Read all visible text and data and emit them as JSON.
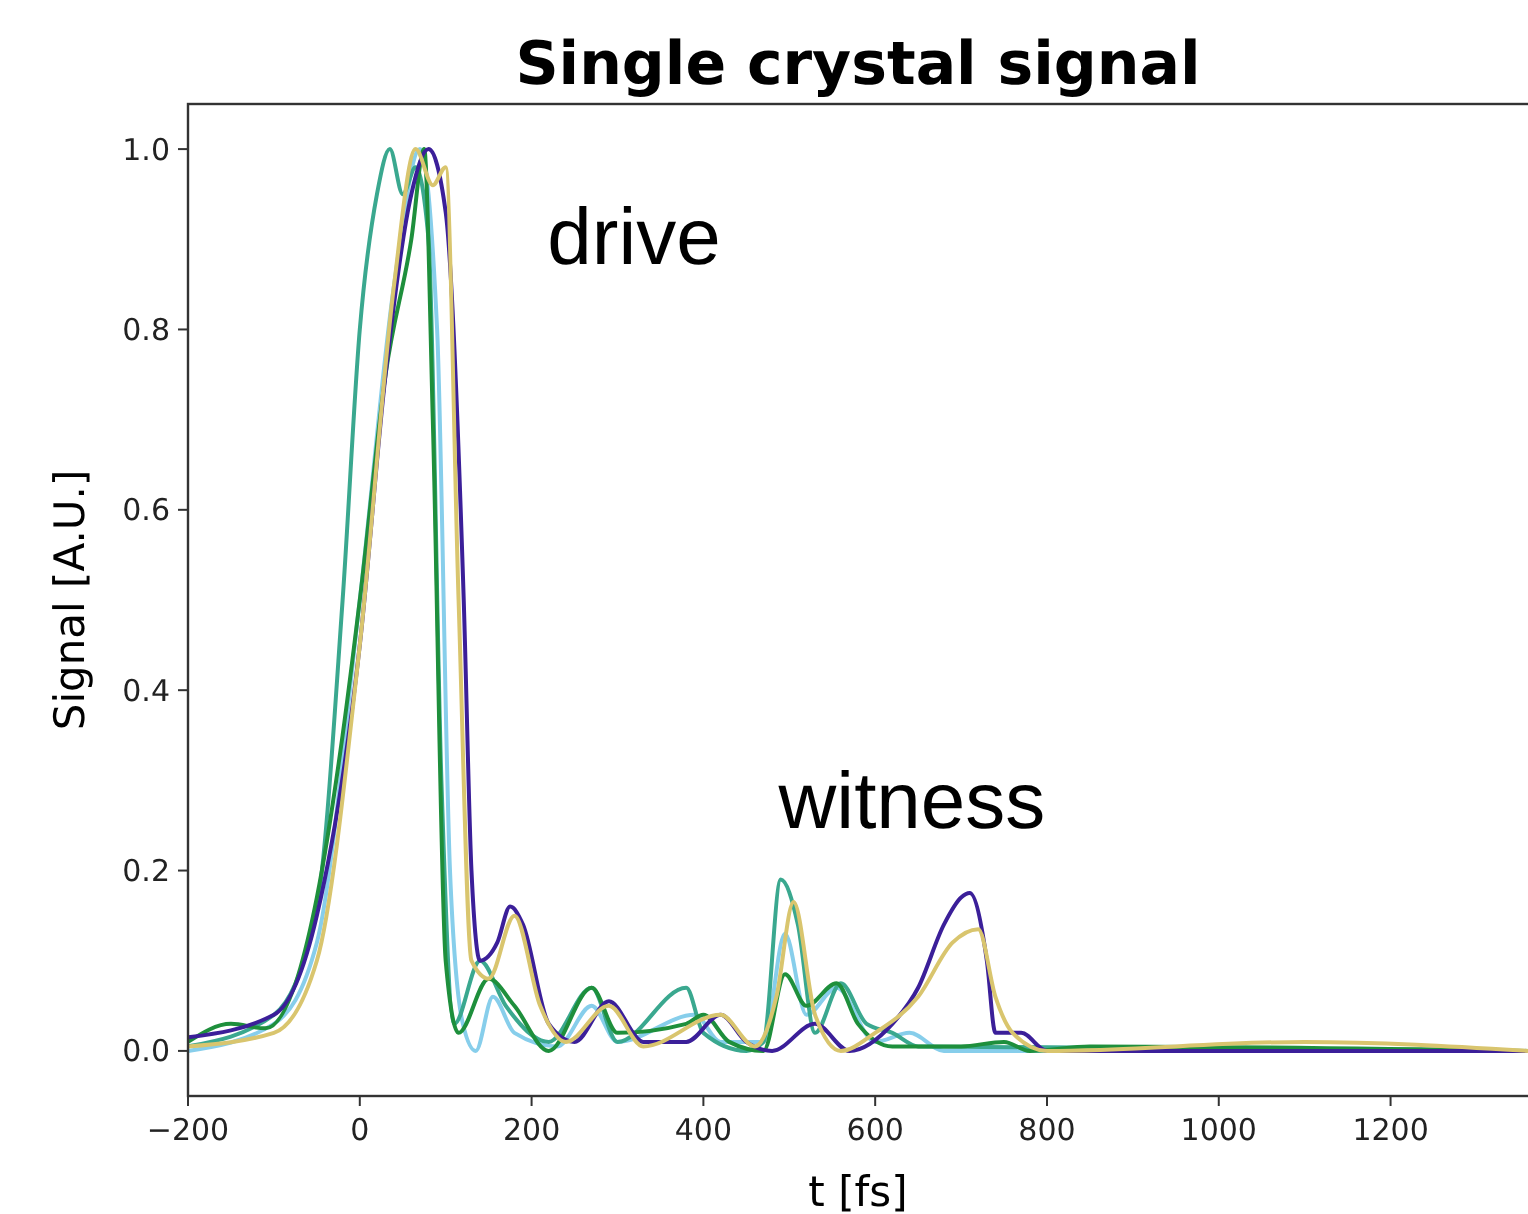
{
  "chart_data": {
    "type": "line",
    "title": "Single crystal signal",
    "xlabel": "t [fs]",
    "ylabel": "Signal [A.U.]",
    "xlim": [
      -200,
      1360
    ],
    "ylim": [
      -0.05,
      1.05
    ],
    "xticks": [
      -200,
      0,
      200,
      400,
      600,
      800,
      1000,
      1200
    ],
    "yticks": [
      {
        "value": 0,
        "label": "0.0"
      },
      {
        "value": 0.2,
        "label": "0.2"
      },
      {
        "value": 0.4,
        "label": "0.4"
      },
      {
        "value": 0.6,
        "label": "0.6"
      },
      {
        "value": 0.8,
        "label": "0.8"
      },
      {
        "value": 1,
        "label": "1.0"
      }
    ],
    "grid": false,
    "marker": "none",
    "line_style": "solid",
    "annotations": [
      "drive",
      "witness"
    ],
    "series": [
      {
        "color": "#87ceeb",
        "x": [
          -200,
          -100,
          -50,
          0,
          40,
          70,
          90,
          105,
          120,
          135,
          155,
          180,
          230,
          270,
          300,
          390,
          420,
          470,
          495,
          520,
          555,
          600,
          640,
          680,
          1360
        ],
        "values": [
          0,
          0.03,
          0.12,
          0.5,
          0.85,
          1,
          0.8,
          0.2,
          0.03,
          0,
          0.06,
          0.02,
          0.005,
          0.05,
          0.01,
          0.04,
          0.01,
          0.01,
          0.13,
          0.04,
          0.07,
          0.01,
          0.02,
          0,
          0
        ]
      },
      {
        "color": "#3aa88f",
        "x": [
          -200,
          -100,
          -50,
          -20,
          0,
          20,
          35,
          50,
          65,
          80,
          95,
          110,
          140,
          170,
          220,
          270,
          300,
          380,
          400,
          450,
          470,
          490,
          510,
          530,
          560,
          590,
          620,
          650,
          1360
        ],
        "values": [
          0.005,
          0.04,
          0.16,
          0.5,
          0.8,
          0.95,
          1,
          0.95,
          0.98,
          0.9,
          0.3,
          0.03,
          0.1,
          0.05,
          0.01,
          0.07,
          0.01,
          0.07,
          0.02,
          0,
          0.01,
          0.19,
          0.14,
          0.02,
          0.075,
          0.03,
          0.02,
          0.005,
          0
        ]
      },
      {
        "color": "#1e8f3c",
        "x": [
          -200,
          -150,
          -110,
          -50,
          -20,
          0,
          30,
          60,
          75,
          85,
          100,
          115,
          150,
          180,
          220,
          270,
          300,
          380,
          400,
          430,
          470,
          495,
          520,
          555,
          580,
          620,
          700,
          750,
          780,
          850,
          1360
        ],
        "values": [
          0.01,
          0.03,
          0.025,
          0.17,
          0.35,
          0.5,
          0.75,
          0.9,
          1,
          0.7,
          0.1,
          0.02,
          0.08,
          0.05,
          0,
          0.07,
          0.02,
          0.03,
          0.04,
          0.01,
          0,
          0.085,
          0.05,
          0.075,
          0.03,
          0.005,
          0.005,
          0.01,
          0,
          0.005,
          0
        ]
      },
      {
        "color": "#3b1f99",
        "x": [
          -200,
          -100,
          -50,
          0,
          30,
          60,
          80,
          100,
          121,
          130,
          140,
          160,
          175,
          190,
          220,
          250,
          290,
          330,
          380,
          420,
          450,
          480,
          530,
          570,
          620,
          650,
          680,
          700,
          710,
          730,
          740,
          770,
          800,
          1360
        ],
        "values": [
          0.015,
          0.04,
          0.15,
          0.45,
          0.75,
          0.95,
          1,
          0.93,
          0.5,
          0.2,
          0.1,
          0.12,
          0.16,
          0.14,
          0.03,
          0.01,
          0.055,
          0.01,
          0.01,
          0.04,
          0.01,
          0,
          0.03,
          0,
          0.03,
          0.07,
          0.14,
          0.17,
          0.175,
          0.1,
          0.02,
          0.02,
          0,
          0
        ]
      },
      {
        "color": "#d9c56e",
        "x": [
          -200,
          -100,
          -50,
          0,
          40,
          65,
          85,
          100,
          115,
          130,
          150,
          180,
          210,
          240,
          290,
          330,
          420,
          460,
          485,
          505,
          530,
          560,
          600,
          650,
          690,
          720,
          740,
          760,
          800,
          1100,
          1360
        ],
        "values": [
          0.005,
          0.02,
          0.1,
          0.45,
          0.85,
          1,
          0.96,
          0.98,
          0.5,
          0.1,
          0.08,
          0.15,
          0.05,
          0.01,
          0.05,
          0.005,
          0.04,
          0.005,
          0.06,
          0.165,
          0.04,
          0,
          0.02,
          0.06,
          0.12,
          0.135,
          0.06,
          0.02,
          0,
          0.01,
          0
        ]
      }
    ]
  }
}
